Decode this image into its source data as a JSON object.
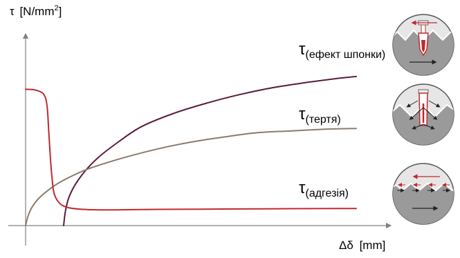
{
  "chart_data": {
    "type": "line",
    "title": "",
    "ylabel_symbol": "τ",
    "ylabel_unit": "[N/mm",
    "ylabel_sup": "2",
    "ylabel_close": "]",
    "xlabel_symbol": "Δδ",
    "xlabel_unit": "[mm]",
    "xlim": [
      0,
      10
    ],
    "ylim": [
      0,
      10
    ],
    "grid": false,
    "series": [
      {
        "symbol": "τ",
        "subscript": "(ефект шпонки)",
        "color": "#5a1a3c",
        "x": [
          1.15,
          1.2,
          1.3,
          1.5,
          1.8,
          2.2,
          2.8,
          3.5,
          4.5,
          5.5,
          6.5,
          7.5,
          8.5,
          9.5,
          10.0
        ],
        "y": [
          0.0,
          0.8,
          1.6,
          2.4,
          3.2,
          4.0,
          4.9,
          5.8,
          6.6,
          7.2,
          7.7,
          8.1,
          8.4,
          8.65,
          8.75
        ]
      },
      {
        "symbol": "τ",
        "subscript": "(тертя)",
        "color": "#8c7a6b",
        "x": [
          0.0,
          0.05,
          0.1,
          0.2,
          0.4,
          0.7,
          1.0,
          1.5,
          2.0,
          3.0,
          4.0,
          5.0,
          6.0,
          7.0,
          8.0,
          9.0,
          10.0
        ],
        "y": [
          0.0,
          0.4,
          0.7,
          1.1,
          1.6,
          2.1,
          2.5,
          3.0,
          3.4,
          4.0,
          4.5,
          4.9,
          5.2,
          5.45,
          5.55,
          5.65,
          5.7
        ]
      },
      {
        "symbol": "τ",
        "subscript": "(адгезія)",
        "color": "#c0282d",
        "x": [
          0.0,
          0.3,
          0.55,
          0.65,
          0.7,
          0.75,
          0.8,
          0.85,
          0.95,
          1.1,
          1.3,
          1.6,
          2.0,
          2.5,
          3.0,
          4.0,
          6.0,
          8.0,
          10.0
        ],
        "y": [
          8.0,
          7.95,
          7.7,
          7.0,
          5.5,
          4.0,
          2.8,
          2.0,
          1.5,
          1.2,
          1.05,
          0.97,
          0.93,
          0.92,
          0.93,
          0.95,
          0.97,
          0.99,
          1.0
        ]
      }
    ],
    "icons": [
      "shear-key-effect-icon",
      "friction-icon",
      "adhesion-icon"
    ],
    "axis_color": "#808080"
  }
}
